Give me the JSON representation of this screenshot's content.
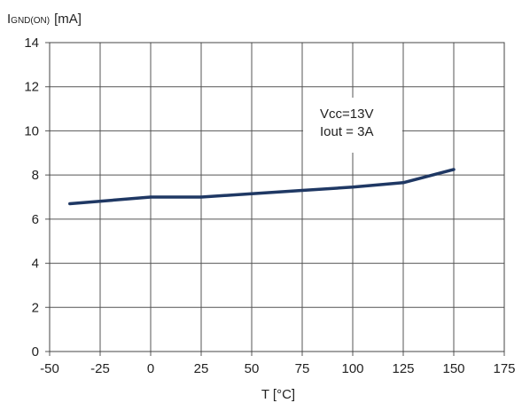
{
  "chart_data": {
    "type": "line",
    "ylabel_main": "I",
    "ylabel_sub": "GND(ON)",
    "ylabel_unit": "[mA]",
    "xlabel": "T [°C]",
    "xlim": [
      -50,
      175
    ],
    "ylim": [
      0,
      14
    ],
    "xticks": [
      -50,
      -25,
      0,
      25,
      50,
      75,
      100,
      125,
      150,
      175
    ],
    "yticks": [
      0,
      2,
      4,
      6,
      8,
      10,
      12,
      14
    ],
    "grid": true,
    "line_color": "#1f3864",
    "series": [
      {
        "x": [
          -40,
          0,
          25,
          50,
          75,
          100,
          125,
          150
        ],
        "y": [
          6.7,
          7.0,
          7.0,
          7.15,
          7.3,
          7.45,
          7.65,
          8.25
        ]
      }
    ],
    "annotation": {
      "line1": "Vcc=13V",
      "line2": "Iout = 3A"
    }
  }
}
